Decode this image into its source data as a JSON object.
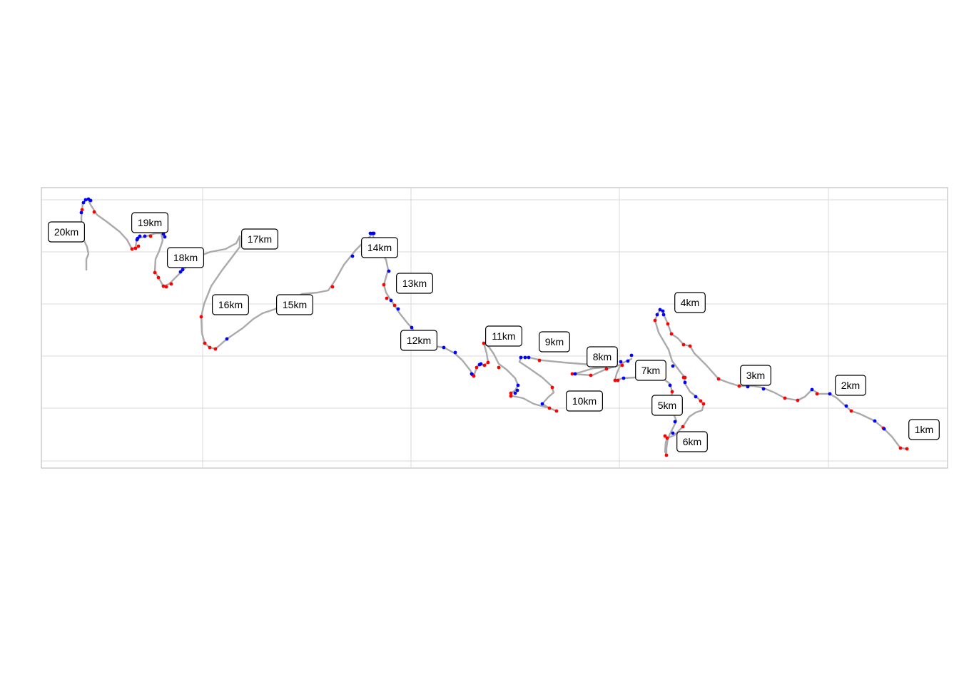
{
  "map": {
    "route_color": "#aaaaaa",
    "grid_color": "#d9d9d9",
    "panel_border_color": "#b3b3b3",
    "marker_colors": {
      "red": "#ff0000",
      "blue": "#0000ff"
    },
    "km_labels": [
      "1km",
      "2km",
      "3km",
      "4km",
      "5km",
      "6km",
      "7km",
      "8km",
      "9km",
      "10km",
      "11km",
      "12km",
      "13km",
      "14km",
      "15km",
      "16km",
      "17km",
      "18km",
      "19km",
      "20km"
    ]
  }
}
